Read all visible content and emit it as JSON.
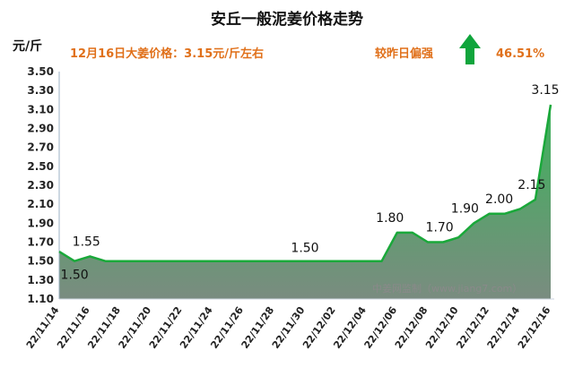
{
  "header": {
    "title": "安丘一般泥姜价格走势",
    "unit": "元/斤",
    "price_note": "12月16日大姜价格：3.15元/斤左右",
    "compare_label": "较昨日偏强",
    "change_pct": "46.51%"
  },
  "watermark": "中姜网监制（www.jiang7.com）",
  "colors": {
    "line": "#1aa83a",
    "fill_top": "#3cb35a",
    "fill_bottom": "#7a8c80",
    "arrow": "#10a53c",
    "info_text": "#e0701a"
  },
  "chart_data": {
    "type": "area",
    "title": "安丘一般泥姜价格走势",
    "ylabel": "元/斤",
    "xlabel": "",
    "ylim": [
      1.1,
      3.5
    ],
    "yticks": [
      "1.10",
      "1.30",
      "1.50",
      "1.70",
      "1.90",
      "2.10",
      "2.30",
      "2.50",
      "2.70",
      "2.90",
      "3.10",
      "3.30",
      "3.50"
    ],
    "xticks": [
      "22/11/14",
      "22/11/16",
      "22/11/18",
      "22/11/20",
      "22/11/22",
      "22/11/24",
      "22/11/26",
      "22/11/28",
      "22/11/30",
      "22/12/02",
      "22/12/04",
      "22/12/06",
      "22/12/08",
      "22/12/10",
      "22/12/12",
      "22/12/14",
      "22/12/16"
    ],
    "x": [
      "22/11/14",
      "22/11/15",
      "22/11/16",
      "22/11/17",
      "22/11/18",
      "22/11/19",
      "22/11/20",
      "22/11/21",
      "22/11/22",
      "22/11/23",
      "22/11/24",
      "22/11/25",
      "22/11/26",
      "22/11/27",
      "22/11/28",
      "22/11/29",
      "22/11/30",
      "22/12/01",
      "22/12/02",
      "22/12/03",
      "22/12/04",
      "22/12/05",
      "22/12/06",
      "22/12/07",
      "22/12/08",
      "22/12/09",
      "22/12/10",
      "22/12/11",
      "22/12/12",
      "22/12/13",
      "22/12/14",
      "22/12/15",
      "22/12/16"
    ],
    "values": [
      1.6,
      1.5,
      1.55,
      1.5,
      1.5,
      1.5,
      1.5,
      1.5,
      1.5,
      1.5,
      1.5,
      1.5,
      1.5,
      1.5,
      1.5,
      1.5,
      1.5,
      1.5,
      1.5,
      1.5,
      1.5,
      1.5,
      1.8,
      1.8,
      1.7,
      1.7,
      1.75,
      1.9,
      2.0,
      2.0,
      2.05,
      2.15,
      3.15
    ],
    "annotations": [
      {
        "index": 1,
        "text": "1.50"
      },
      {
        "index": 2,
        "text": "1.55"
      },
      {
        "index": 16,
        "text": "1.50"
      },
      {
        "index": 22,
        "text": "1.80"
      },
      {
        "index": 25,
        "text": "1.70"
      },
      {
        "index": 27,
        "text": "1.90"
      },
      {
        "index": 29,
        "text": "2.00"
      },
      {
        "index": 31,
        "text": "2.15"
      },
      {
        "index": 32,
        "text": "3.15"
      }
    ],
    "grid": false,
    "legend": "none"
  }
}
